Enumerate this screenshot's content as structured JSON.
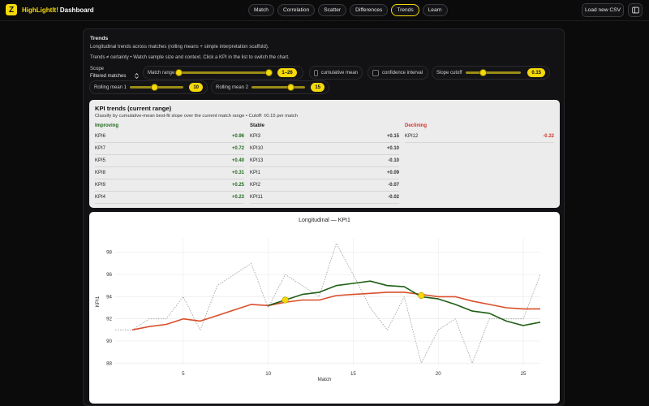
{
  "app": {
    "logo_letter": "Z",
    "brand_highlight": "HighLightIt!",
    "brand_rest": "Dashboard",
    "accent_color": "#f5d90a"
  },
  "nav": {
    "tabs": [
      {
        "label": "Match",
        "active": false
      },
      {
        "label": "Correlation",
        "active": false
      },
      {
        "label": "Scatter",
        "active": false
      },
      {
        "label": "Differences",
        "active": false
      },
      {
        "label": "Trends",
        "active": true
      },
      {
        "label": "Learn",
        "active": false
      }
    ]
  },
  "header": {
    "load_button": "Load new CSV",
    "settings_icon": "panel-icon"
  },
  "panel": {
    "title": "Trends",
    "subtitle": "Longitudinal trends across matches (rolling means + simple interpretation scaffold).",
    "note": "Trends ≠ certainty • Watch sample size and context. Click a KPI in the list to switch the chart."
  },
  "controls": {
    "scope_label": "Scope",
    "scope_value": "Filtered matches",
    "match_range_label": "Match range",
    "match_range_value": "1–26",
    "cumulative_label": "cumulative mean",
    "confidence_label": "confidence interval",
    "slope_label": "Slope cutoff",
    "slope_value": "0.15",
    "rolling1_label": "Rolling mean 1",
    "rolling1_value": "10",
    "rolling2_label": "Rolling mean 2",
    "rolling2_value": "15"
  },
  "kpi": {
    "title": "KPI trends (current range)",
    "subtitle": "Classify by cumulative-mean best-fit slope over the current match range • Cutoff: ±0.15 per match",
    "improving_label": "Improving",
    "stable_label": "Stable",
    "declining_label": "Declining",
    "improving": [
      {
        "name": "KPI6",
        "value": "+0.96"
      },
      {
        "name": "KPI7",
        "value": "+0.72"
      },
      {
        "name": "KPI5",
        "value": "+0.40"
      },
      {
        "name": "KPI8",
        "value": "+0.31"
      },
      {
        "name": "KPI9",
        "value": "+0.25"
      },
      {
        "name": "KPI4",
        "value": "+0.23"
      }
    ],
    "stable": [
      {
        "name": "KPI3",
        "value": "+0.15"
      },
      {
        "name": "KPI10",
        "value": "+0.10"
      },
      {
        "name": "KPI13",
        "value": "-0.10"
      },
      {
        "name": "KPI1",
        "value": "+0.09"
      },
      {
        "name": "KPI2",
        "value": "-0.07"
      },
      {
        "name": "KPI11",
        "value": "-0.02"
      }
    ],
    "declining": [
      {
        "name": "KPI12",
        "value": "-0.22"
      }
    ]
  },
  "chart_data": {
    "type": "line",
    "title": "Longitudinal — KPI1",
    "xlabel": "Match",
    "ylabel": "KPI1",
    "xlim": [
      1,
      26
    ],
    "ylim": [
      87.8,
      99.3
    ],
    "x_ticks": [
      5,
      10,
      15,
      20,
      25
    ],
    "y_ticks": [
      88,
      90,
      92,
      94,
      96,
      98
    ],
    "grid": true,
    "series": [
      {
        "color": "#9a9a9a",
        "style": "dotted",
        "x": [
          1,
          2,
          3,
          4,
          5,
          6,
          7,
          8,
          9,
          10,
          11,
          12,
          13,
          14,
          15,
          16,
          17,
          18,
          19,
          20,
          21,
          22,
          23,
          24,
          25,
          26
        ],
        "values": [
          91.0,
          91.0,
          92.0,
          92.0,
          94.0,
          91.0,
          95.0,
          96.0,
          97.0,
          93.0,
          96.0,
          95.0,
          94.0,
          98.8,
          96.0,
          93.0,
          91.0,
          94.0,
          88.0,
          91.0,
          92.0,
          88.0,
          92.0,
          92.0,
          92.0,
          96.0
        ]
      },
      {
        "color": "#d94f2a",
        "style": "solid",
        "x": [
          2,
          3,
          4,
          5,
          6,
          7,
          8,
          9,
          10,
          11,
          12,
          13,
          14,
          15,
          16,
          17,
          18,
          19,
          20,
          21,
          22,
          23,
          24,
          25,
          26
        ],
        "values": [
          91.0,
          91.3,
          91.5,
          92.0,
          91.8,
          92.3,
          92.8,
          93.3,
          93.2,
          93.5,
          93.7,
          93.7,
          94.1,
          94.2,
          94.3,
          94.4,
          94.4,
          94.2,
          94.0,
          94.0,
          93.6,
          93.3,
          93.0,
          92.9,
          92.9
        ]
      },
      {
        "color": "#1f5e14",
        "style": "solid",
        "x": [
          10,
          11,
          12,
          13,
          14,
          15,
          16,
          17,
          18,
          19,
          20,
          21,
          22,
          23,
          24,
          25,
          26
        ],
        "values": [
          93.2,
          93.7,
          94.2,
          94.4,
          95.0,
          95.2,
          95.4,
          95.0,
          94.9,
          94.0,
          93.8,
          93.3,
          92.7,
          92.5,
          91.8,
          91.4,
          91.7
        ]
      }
    ],
    "markers": [
      {
        "x": 11,
        "y": 93.7,
        "color": "#f5d90a"
      },
      {
        "x": 19,
        "y": 94.1,
        "color": "#f5d90a"
      }
    ]
  }
}
